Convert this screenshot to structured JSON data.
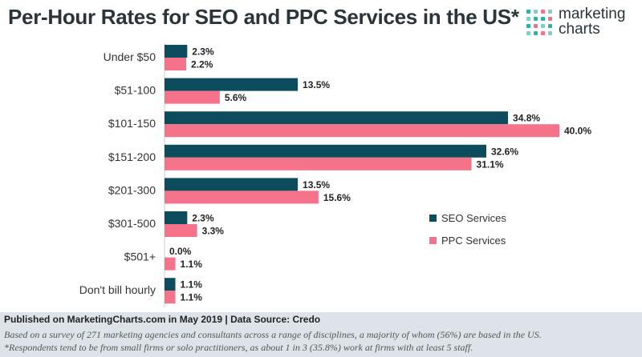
{
  "title": "Per-Hour Rates for SEO and PPC Services in the US*",
  "logo": {
    "line1": "marketing",
    "line2": "charts"
  },
  "footer": {
    "published": "Published on MarketingCharts.com in May 2019 | Data Source: Credo",
    "note1": "Based on a survey of 271 marketing agencies and consultants across a range of disciplines, a majority of whom (56%) are based in the US.",
    "note2": "*Respondents tend to be from small firms or solo practitioners, as about 1 in 3 (35.8%) work at firms with at least 5 staff."
  },
  "chart_data": {
    "type": "bar",
    "orientation": "horizontal",
    "title": "Per-Hour Rates for SEO and PPC Services in the US*",
    "categories": [
      "Under $50",
      "$51-100",
      "$101-150",
      "$151-200",
      "$201-300",
      "$301-500",
      "$501+",
      "Don't bill hourly"
    ],
    "series": [
      {
        "name": "SEO Services",
        "color": "#0d4c5c",
        "values": [
          2.3,
          13.5,
          34.8,
          32.6,
          13.5,
          2.3,
          0.0,
          1.1
        ],
        "labels": [
          "2.3%",
          "13.5%",
          "34.8%",
          "32.6%",
          "13.5%",
          "2.3%",
          "0.0%",
          "1.1%"
        ]
      },
      {
        "name": "PPC Services",
        "color": "#f4728a",
        "values": [
          2.2,
          5.6,
          40.0,
          31.1,
          15.6,
          3.3,
          1.1,
          1.1
        ],
        "labels": [
          "2.2%",
          "5.6%",
          "40.0%",
          "31.1%",
          "15.6%",
          "3.3%",
          "1.1%",
          "1.1%"
        ]
      }
    ],
    "value_unit": "%",
    "legend_position": "right",
    "grid": false,
    "xlim": [
      0,
      40
    ]
  }
}
